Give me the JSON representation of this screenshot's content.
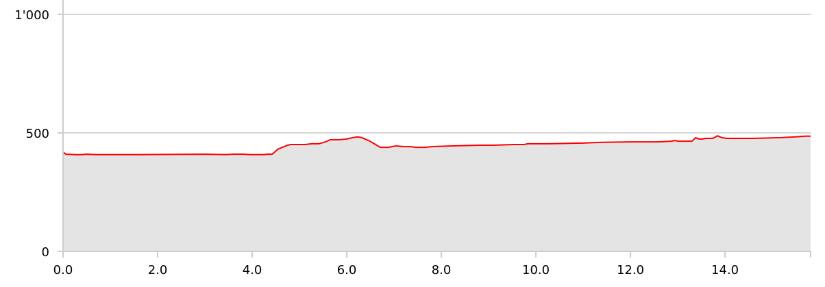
{
  "chart_data": {
    "type": "area",
    "title": "",
    "xlabel": "",
    "ylabel": "",
    "xlim": [
      0,
      15.81
    ],
    "ylim": [
      0,
      1000
    ],
    "x_ticks": [
      0,
      2,
      4,
      6,
      8,
      10,
      12,
      14
    ],
    "x_tick_labels": [
      "0.0",
      "2.0",
      "4.0",
      "6.0",
      "8.0",
      "10.0",
      "12.0",
      "14.0"
    ],
    "y_ticks": [
      0,
      500,
      1000
    ],
    "y_tick_labels": [
      "0",
      "500",
      "1'000"
    ],
    "grid": "horizontal",
    "colors": {
      "line": "#ff0000",
      "fill": "#e4e4e4",
      "grid": "#d6d6d6"
    },
    "series": [
      {
        "x": [
          0,
          0.06,
          0.26,
          0.41,
          0.48,
          0.7,
          1.57,
          3.01,
          3.45,
          3.59,
          3.81,
          3.96,
          4.25,
          4.32,
          4.42,
          4.46,
          4.54,
          4.75,
          4.81,
          4.9,
          5.12,
          5.26,
          5.41,
          5.55,
          5.65,
          5.84,
          5.99,
          6.13,
          6.23,
          6.32,
          6.49,
          6.71,
          6.88,
          7.04,
          7.22,
          7.36,
          7.46,
          7.65,
          7.8,
          8.23,
          8.81,
          9.1,
          9.54,
          9.64,
          9.75,
          9.83,
          10.26,
          10.99,
          11.42,
          12.0,
          12.58,
          12.87,
          12.94,
          13.01,
          13.3,
          13.38,
          13.45,
          13.52,
          13.59,
          13.74,
          13.84,
          13.93,
          14.03,
          14.61,
          15.19,
          15.48,
          15.7,
          15.81
        ],
        "y": [
          419,
          410,
          408,
          408,
          410,
          408,
          408,
          410,
          408,
          410,
          410,
          408,
          408,
          410,
          410,
          416,
          431,
          448,
          451,
          451,
          451,
          454,
          454,
          462,
          471,
          471,
          474,
          480,
          483,
          480,
          465,
          439,
          439,
          445,
          442,
          442,
          439,
          439,
          442,
          445,
          448,
          448,
          451,
          451,
          451,
          454,
          454,
          457,
          460,
          462,
          462,
          465,
          468,
          465,
          465,
          480,
          474,
          474,
          477,
          477,
          488,
          480,
          477,
          477,
          480,
          483,
          486,
          486
        ]
      }
    ]
  }
}
